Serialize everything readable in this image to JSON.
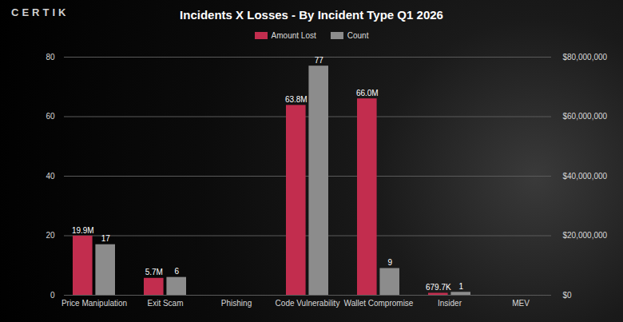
{
  "chart_data": {
    "type": "bar",
    "title": "Incidents X Losses - By Incident Type Q1 2026",
    "brand": "CERTIK",
    "categories": [
      "Price Manipulation",
      "Exit Scam",
      "Phishing",
      "Code Vulnerability",
      "Wallet Compromise",
      "Insider",
      "MEV"
    ],
    "series": [
      {
        "name": "Amount Lost",
        "color": "#c22d4e",
        "axis": "y2",
        "values": [
          19900000,
          5700000,
          null,
          63800000,
          66000000,
          679700,
          null
        ],
        "value_labels": [
          "19.9M",
          "5.7M",
          null,
          "63.8M",
          "66.0M",
          "679.7K",
          null
        ]
      },
      {
        "name": "Count",
        "color": "#8c8c8c",
        "values": [
          17,
          6,
          null,
          77,
          9,
          1,
          null
        ]
      }
    ],
    "ylim": [
      0,
      80
    ],
    "yticks": [
      0,
      20,
      40,
      60,
      80
    ],
    "y2lim": [
      0,
      80000000
    ],
    "y2ticks": [
      {
        "value": 0,
        "label": "$0"
      },
      {
        "value": 20000000,
        "label": "$20,000,000"
      },
      {
        "value": 40000000,
        "label": "$40,000,000"
      },
      {
        "value": 60000000,
        "label": "$60,000,000"
      },
      {
        "value": 80000000,
        "label": "$80,000,000"
      }
    ],
    "grid": true,
    "data_labels": true,
    "legend": "top"
  }
}
